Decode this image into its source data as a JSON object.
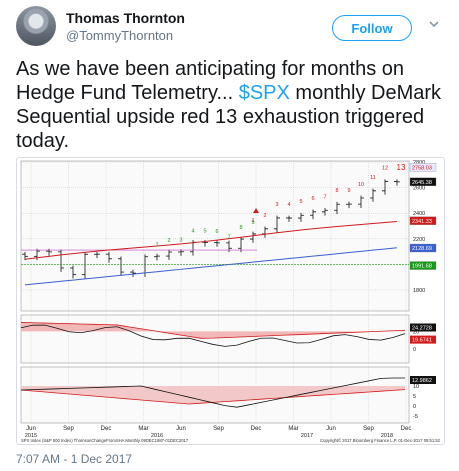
{
  "author": {
    "name": "Thomas Thornton",
    "handle": "@TommyThornton",
    "follow_label": "Follow"
  },
  "tweet": {
    "text_before": "As we have been anticipating for months on Hedge Fund Telemetry... ",
    "cashtag": "$SPX",
    "text_after": " monthly DeMark Sequential upside red 13 exhaustion triggered today.",
    "timestamp": "7:07 AM - 1 Dec 2017"
  },
  "chart": {
    "price_axis": [
      "2800",
      "2600",
      "2400",
      "2200",
      "2000",
      "1800"
    ],
    "price_tags": {
      "top": "2758.03",
      "last": "2645.38",
      "red": "2341.33",
      "blue": "2128.69",
      "green": "1991.68"
    },
    "osc1_tags": {
      "black": "24.2728",
      "red": "19.6741"
    },
    "osc1_axis": [
      "20",
      "0"
    ],
    "osc2_tag": "12.9862",
    "osc2_axis": [
      "10",
      "5",
      "0",
      "-5"
    ],
    "x_months": [
      "Jun",
      "Sep",
      "Dec",
      "Mar",
      "Jun",
      "Sep",
      "Dec",
      "Mar",
      "Jun",
      "Sep",
      "Dec"
    ],
    "x_years": [
      "2015",
      "2016",
      "2017",
      "2018"
    ],
    "footer_left": "SPX Index (S&P 500 Index) ThornsonChangeFromSHA  Monthly 09DEC1987-01DEC2017",
    "footer_right": "Copyright© 2017 Bloomberg Finance L.P.     01-Dec-2017 09:51:52",
    "green_counts": [
      "1",
      "2",
      "3",
      "4",
      "5",
      "6",
      "7",
      "8",
      "9"
    ],
    "red_counts": [
      "1",
      "2",
      "3",
      "4",
      "5",
      "6",
      "7",
      "8",
      "9",
      "10",
      "11",
      "12",
      "13"
    ],
    "colors": {
      "red": "#d11a1a",
      "green": "#1a9a1a",
      "blue": "#3a5fd0",
      "price": "#111111"
    }
  }
}
